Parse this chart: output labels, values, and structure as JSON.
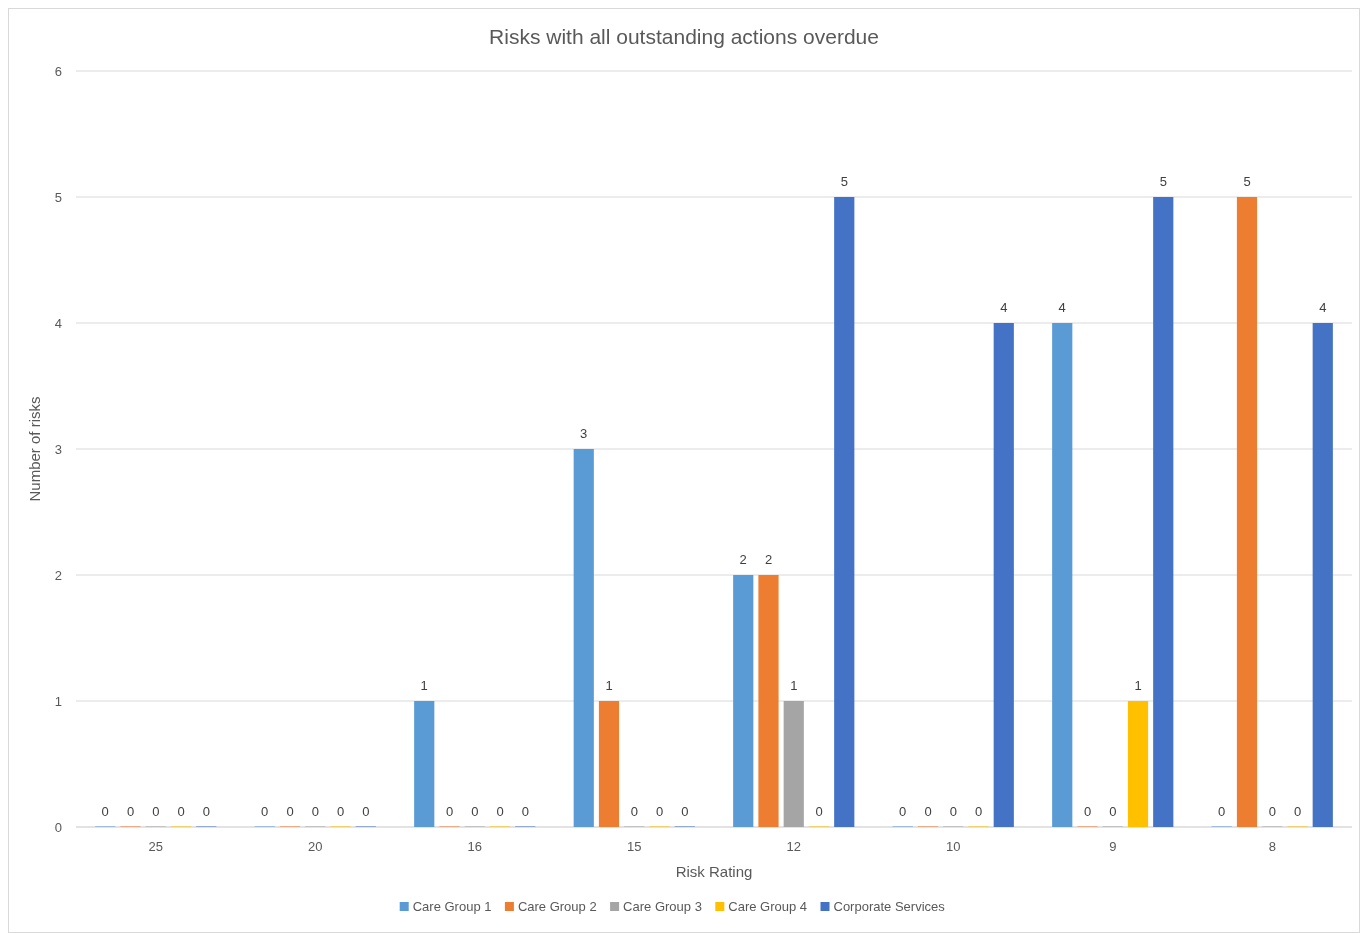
{
  "chart_data": {
    "type": "bar",
    "title": "Risks with all outstanding actions overdue",
    "xlabel": "Risk Rating",
    "ylabel": "Number of risks",
    "categories": [
      "25",
      "20",
      "16",
      "15",
      "12",
      "10",
      "9",
      "8"
    ],
    "series": [
      {
        "name": "Care Group 1",
        "color": "#5b9bd5",
        "values": [
          0,
          0,
          1,
          3,
          2,
          0,
          4,
          0
        ]
      },
      {
        "name": "Care Group 2",
        "color": "#ed7d31",
        "values": [
          0,
          0,
          0,
          1,
          2,
          0,
          0,
          5
        ]
      },
      {
        "name": "Care Group 3",
        "color": "#a5a5a5",
        "values": [
          0,
          0,
          0,
          0,
          1,
          0,
          0,
          0
        ]
      },
      {
        "name": "Care Group 4",
        "color": "#ffc000",
        "values": [
          0,
          0,
          0,
          0,
          0,
          0,
          1,
          0
        ]
      },
      {
        "name": "Corporate Services",
        "color": "#4472c4",
        "values": [
          0,
          0,
          0,
          0,
          5,
          4,
          5,
          4
        ]
      }
    ],
    "ylim": [
      0,
      6
    ],
    "yticks": [
      0,
      1,
      2,
      3,
      4,
      5,
      6
    ],
    "grid": "y",
    "legend": "bottom",
    "data_labels": true
  }
}
